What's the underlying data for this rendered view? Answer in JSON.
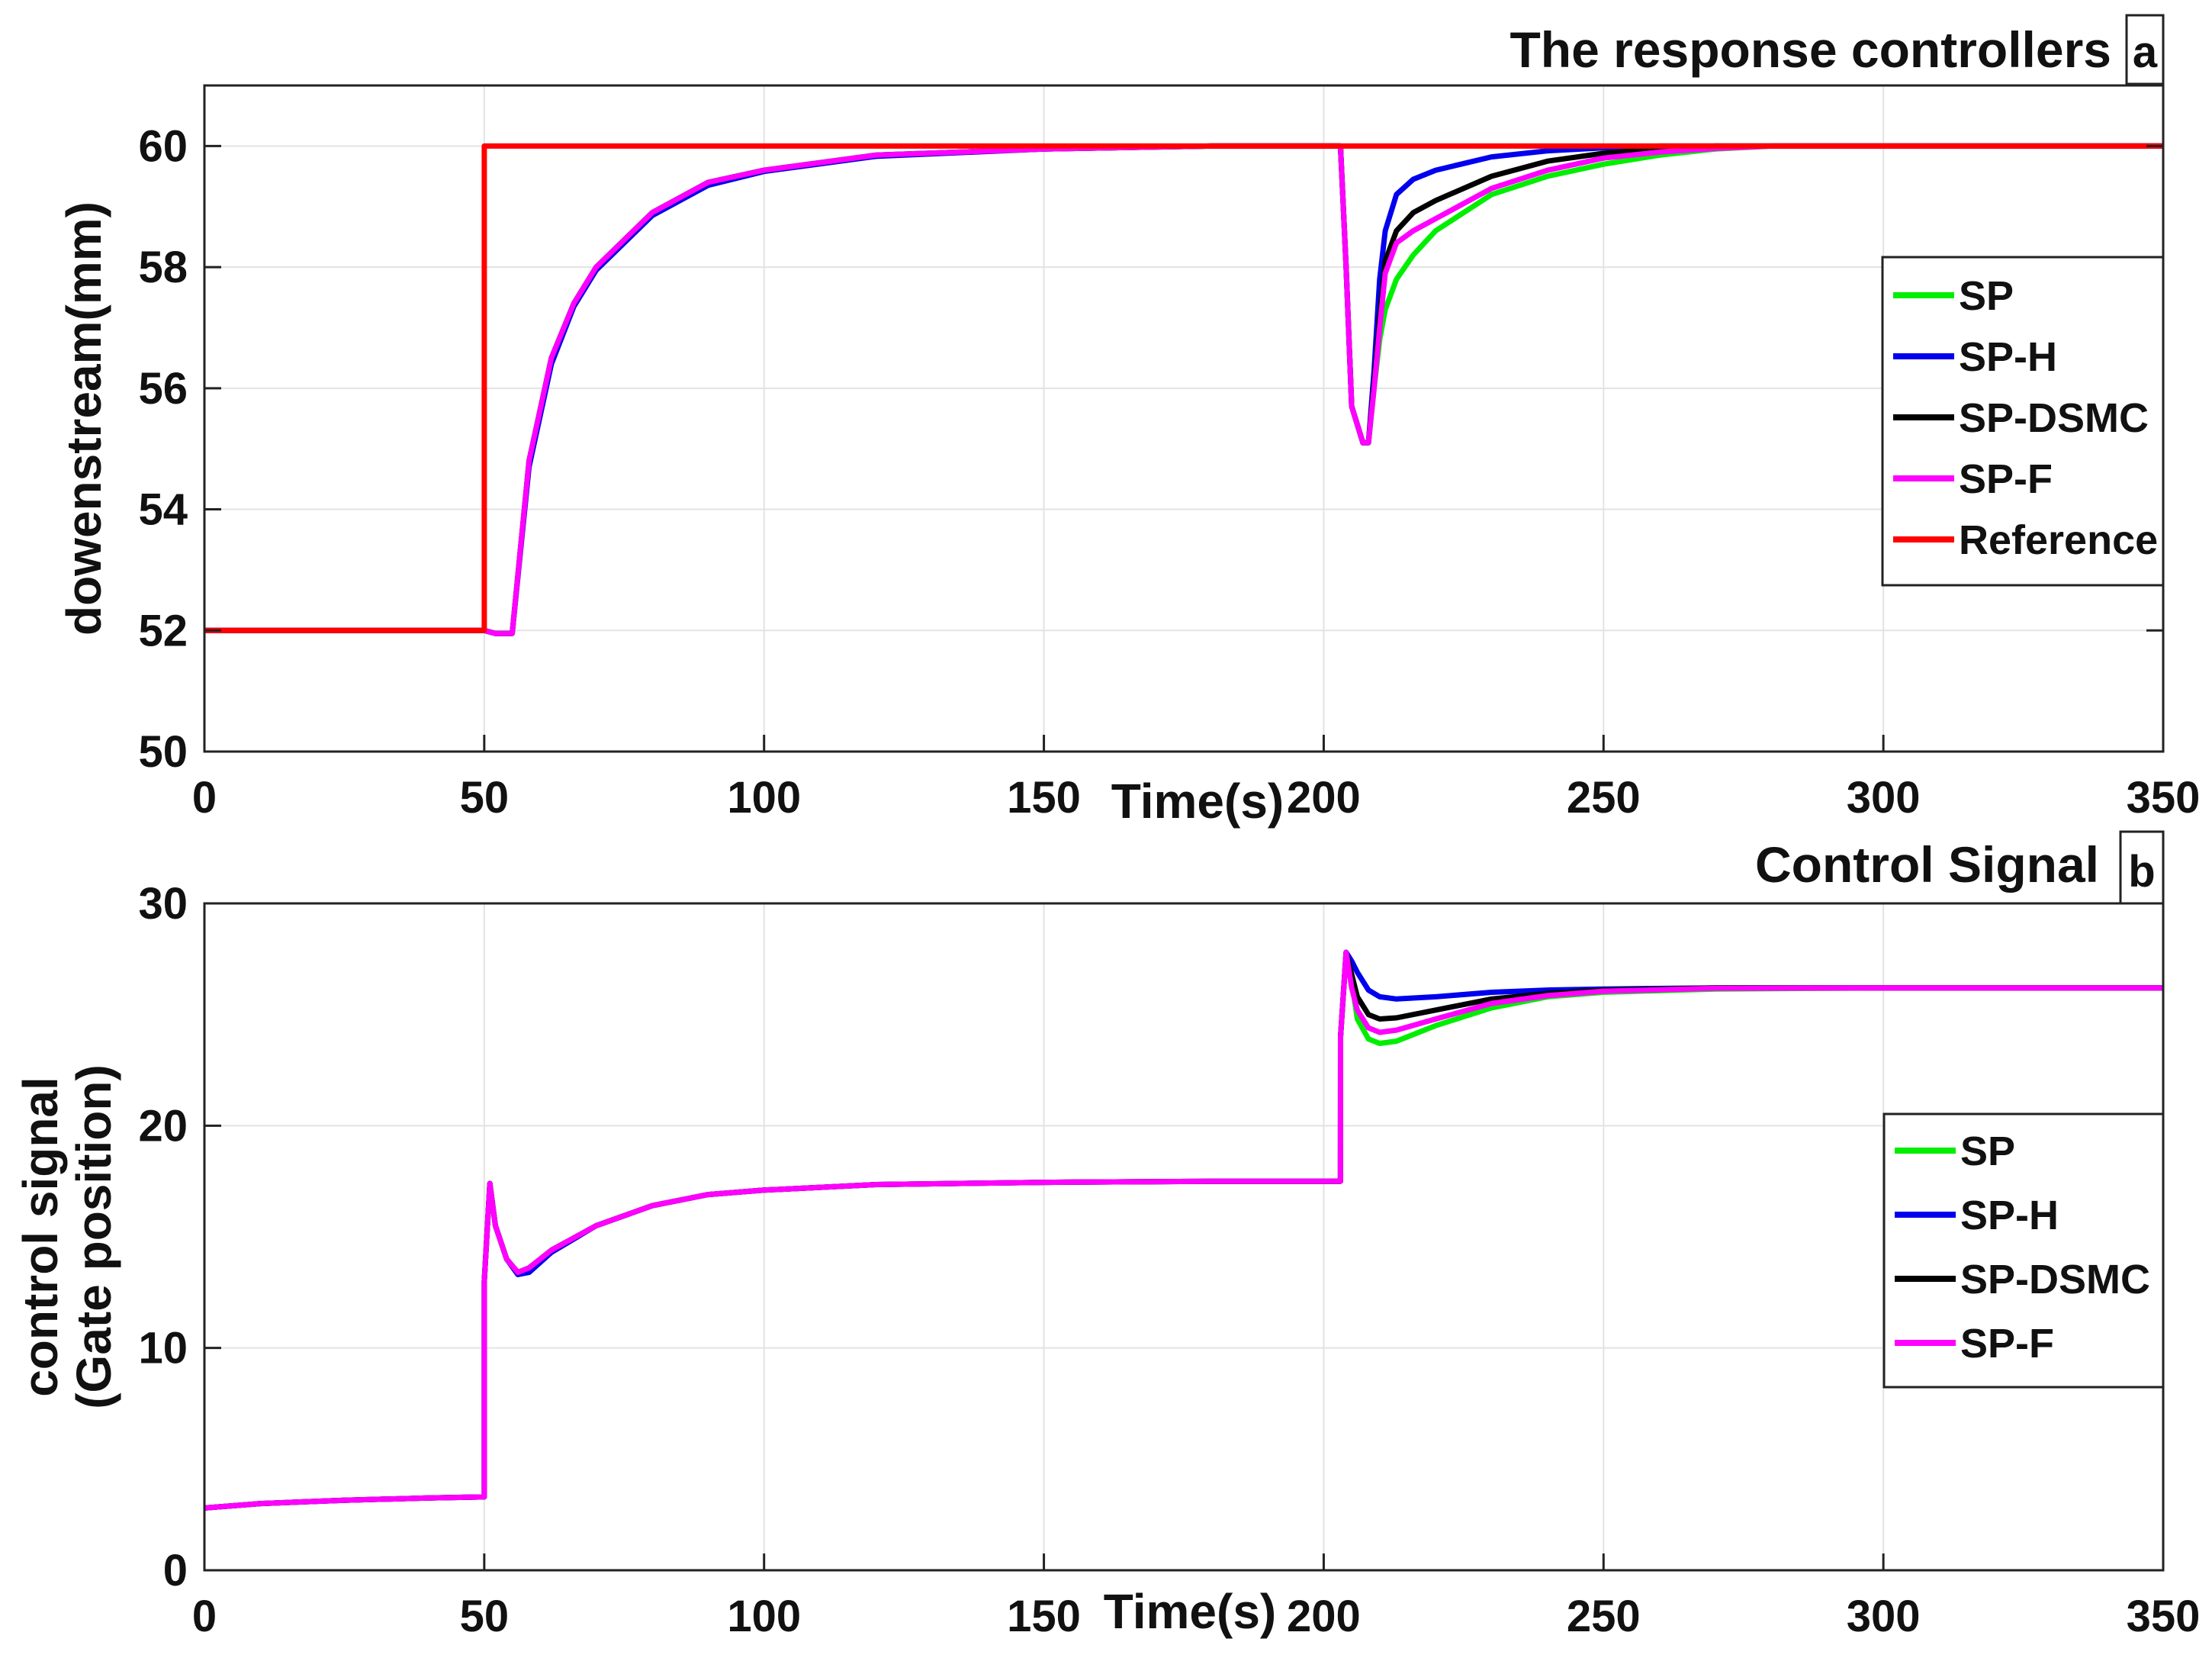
{
  "colors": {
    "SP": "#00ee00",
    "SP-H": "#0000ee",
    "SP-DSMC": "#000000",
    "SP-F": "#ff00ff",
    "Reference": "#ff0000",
    "grid": "#e3e3e3",
    "axes": "#222222"
  },
  "chart_data": [
    {
      "type": "line",
      "panel_tag": "a",
      "title": "The response controllers",
      "xlabel": "Time(s)",
      "ylabel": "dowenstream(mm)",
      "xlim": [
        0,
        350
      ],
      "ylim": [
        50,
        61
      ],
      "xticks": [
        0,
        50,
        100,
        150,
        200,
        250,
        300,
        350
      ],
      "yticks": [
        50,
        52,
        54,
        56,
        58,
        60
      ],
      "grid": true,
      "legend_position": "right",
      "legend": [
        "SP",
        "SP-H",
        "SP-DSMC",
        "SP-F",
        "Reference"
      ],
      "series": [
        {
          "name": "SP",
          "x": [
            0,
            50,
            52,
            55,
            58,
            62,
            66,
            70,
            80,
            90,
            100,
            120,
            150,
            180,
            203,
            204,
            205,
            207,
            208,
            209,
            210,
            211,
            213,
            216,
            220,
            230,
            240,
            250,
            260,
            270,
            280,
            300,
            350
          ],
          "y": [
            52,
            52,
            51.95,
            51.95,
            54.8,
            56.5,
            57.4,
            58.0,
            58.9,
            59.4,
            59.6,
            59.85,
            59.95,
            60,
            60,
            58,
            55.7,
            55.1,
            55.1,
            56.0,
            56.8,
            57.3,
            57.8,
            58.2,
            58.6,
            59.2,
            59.5,
            59.7,
            59.85,
            59.95,
            60,
            60,
            60
          ]
        },
        {
          "name": "SP-H",
          "x": [
            0,
            50,
            52,
            55,
            58,
            62,
            66,
            70,
            80,
            90,
            100,
            120,
            150,
            180,
            203,
            204,
            205,
            207,
            208,
            209,
            210,
            211,
            213,
            216,
            220,
            230,
            240,
            250,
            260,
            270,
            280,
            300,
            350
          ],
          "y": [
            52,
            52,
            51.95,
            51.95,
            54.7,
            56.4,
            57.35,
            57.95,
            58.85,
            59.35,
            59.58,
            59.83,
            59.95,
            60,
            60,
            58,
            55.7,
            55.1,
            55.1,
            56.3,
            57.8,
            58.6,
            59.2,
            59.45,
            59.6,
            59.82,
            59.92,
            59.97,
            60,
            60,
            60,
            60,
            60
          ]
        },
        {
          "name": "SP-DSMC",
          "x": [
            0,
            50,
            52,
            55,
            58,
            62,
            66,
            70,
            80,
            90,
            100,
            120,
            150,
            180,
            203,
            204,
            205,
            207,
            208,
            209,
            210,
            211,
            213,
            216,
            220,
            230,
            240,
            250,
            260,
            270,
            280,
            300,
            350
          ],
          "y": [
            52,
            52,
            51.95,
            51.95,
            54.8,
            56.5,
            57.4,
            58.0,
            58.9,
            59.4,
            59.6,
            59.85,
            59.95,
            60,
            60,
            58,
            55.7,
            55.1,
            55.1,
            56.1,
            57.2,
            58.1,
            58.6,
            58.9,
            59.1,
            59.5,
            59.75,
            59.88,
            59.95,
            60,
            60,
            60,
            60
          ]
        },
        {
          "name": "SP-F",
          "x": [
            0,
            50,
            52,
            55,
            58,
            62,
            66,
            70,
            80,
            90,
            100,
            120,
            150,
            180,
            203,
            204,
            205,
            207,
            208,
            209,
            210,
            211,
            213,
            216,
            220,
            230,
            240,
            250,
            260,
            270,
            280,
            300,
            350
          ],
          "y": [
            52,
            52,
            51.95,
            51.95,
            54.8,
            56.5,
            57.4,
            58.0,
            58.9,
            59.4,
            59.6,
            59.85,
            59.95,
            60,
            60,
            58,
            55.7,
            55.1,
            55.1,
            56.0,
            57.0,
            57.9,
            58.4,
            58.6,
            58.8,
            59.3,
            59.6,
            59.8,
            59.9,
            59.96,
            60,
            60,
            60
          ]
        },
        {
          "name": "Reference",
          "x": [
            0,
            50,
            50.01,
            350
          ],
          "y": [
            52,
            52,
            60,
            60
          ]
        }
      ]
    },
    {
      "type": "line",
      "panel_tag": "b",
      "title": "Control Signal",
      "xlabel": "Time(s)",
      "ylabel": [
        "control signal",
        "(Gate position)"
      ],
      "xlim": [
        0,
        350
      ],
      "ylim": [
        0,
        30
      ],
      "xticks": [
        0,
        50,
        100,
        150,
        200,
        250,
        300,
        350
      ],
      "yticks": [
        0,
        10,
        20,
        30
      ],
      "grid": true,
      "legend_position": "right",
      "legend": [
        "SP",
        "SP-H",
        "SP-DSMC",
        "SP-F"
      ],
      "series": [
        {
          "name": "SP",
          "x": [
            0,
            10,
            25,
            40,
            50,
            50.01,
            51,
            52,
            54,
            56,
            58,
            62,
            70,
            80,
            90,
            100,
            120,
            150,
            180,
            203,
            203.01,
            204,
            205,
            206,
            208,
            210,
            213,
            220,
            230,
            240,
            250,
            270,
            300,
            350
          ],
          "y": [
            2.8,
            3.0,
            3.15,
            3.25,
            3.3,
            13.0,
            17.4,
            15.5,
            14.0,
            13.4,
            13.6,
            14.4,
            15.5,
            16.4,
            16.9,
            17.1,
            17.35,
            17.45,
            17.5,
            17.5,
            24.0,
            27.8,
            26.5,
            24.8,
            23.9,
            23.7,
            23.8,
            24.5,
            25.3,
            25.8,
            26.0,
            26.15,
            26.2,
            26.2
          ]
        },
        {
          "name": "SP-H",
          "x": [
            0,
            10,
            25,
            40,
            50,
            50.01,
            51,
            52,
            54,
            56,
            58,
            62,
            70,
            80,
            90,
            100,
            120,
            150,
            180,
            203,
            203.01,
            204,
            205,
            206,
            208,
            210,
            213,
            220,
            230,
            240,
            250,
            270,
            300,
            350
          ],
          "y": [
            2.8,
            3.0,
            3.15,
            3.25,
            3.3,
            13.0,
            17.4,
            15.5,
            14.0,
            13.3,
            13.4,
            14.3,
            15.5,
            16.4,
            16.9,
            17.1,
            17.35,
            17.45,
            17.5,
            17.5,
            24.0,
            27.8,
            27.4,
            26.9,
            26.1,
            25.8,
            25.7,
            25.8,
            26.0,
            26.1,
            26.15,
            26.2,
            26.2,
            26.2
          ]
        },
        {
          "name": "SP-DSMC",
          "x": [
            0,
            10,
            25,
            40,
            50,
            50.01,
            51,
            52,
            54,
            56,
            58,
            62,
            70,
            80,
            90,
            100,
            120,
            150,
            180,
            203,
            203.01,
            204,
            205,
            206,
            208,
            210,
            213,
            220,
            230,
            240,
            250,
            270,
            300,
            350
          ],
          "y": [
            2.8,
            3.0,
            3.15,
            3.25,
            3.3,
            13.0,
            17.4,
            15.5,
            14.0,
            13.4,
            13.6,
            14.4,
            15.5,
            16.4,
            16.9,
            17.1,
            17.35,
            17.45,
            17.5,
            17.5,
            24.0,
            27.8,
            26.8,
            25.8,
            25.0,
            24.8,
            24.85,
            25.2,
            25.7,
            25.95,
            26.1,
            26.2,
            26.2,
            26.2
          ]
        },
        {
          "name": "SP-F",
          "x": [
            0,
            10,
            25,
            40,
            50,
            50.01,
            51,
            52,
            54,
            56,
            58,
            62,
            70,
            80,
            90,
            100,
            120,
            150,
            180,
            203,
            203.01,
            204,
            205,
            206,
            208,
            210,
            213,
            220,
            230,
            240,
            250,
            270,
            300,
            350
          ],
          "y": [
            2.8,
            3.0,
            3.15,
            3.25,
            3.3,
            13.0,
            17.4,
            15.5,
            14.0,
            13.4,
            13.6,
            14.4,
            15.5,
            16.4,
            16.9,
            17.1,
            17.35,
            17.45,
            17.5,
            17.5,
            24.0,
            27.8,
            26.2,
            25.2,
            24.4,
            24.2,
            24.3,
            24.8,
            25.5,
            25.85,
            26.05,
            26.18,
            26.2,
            26.2
          ]
        }
      ]
    }
  ]
}
